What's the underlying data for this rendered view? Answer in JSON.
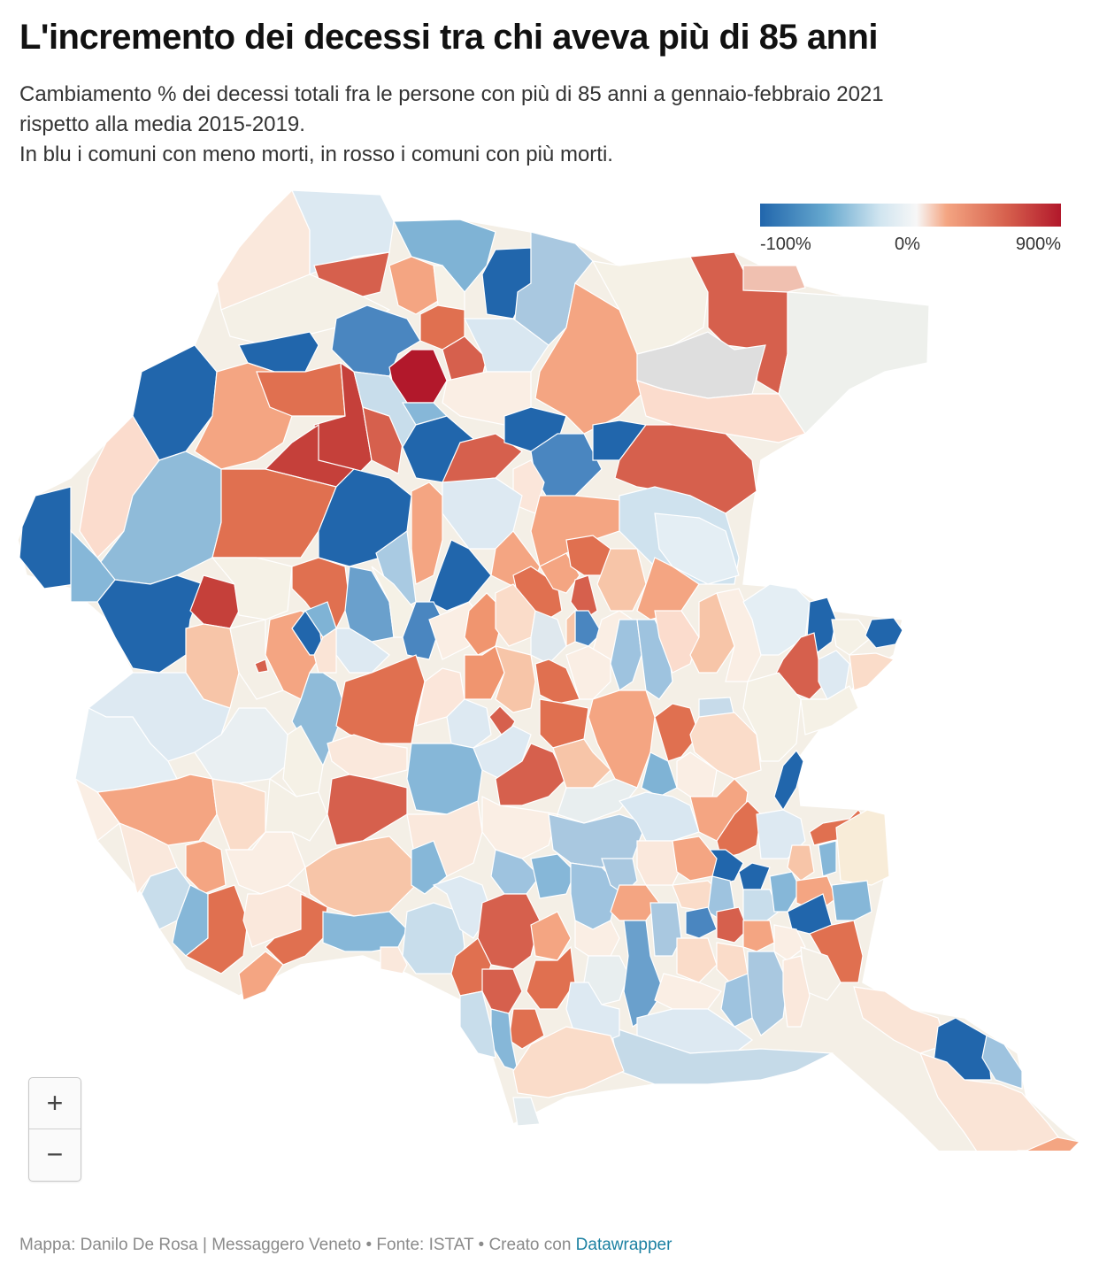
{
  "title": "L'incremento dei decessi tra chi aveva più di 85 anni",
  "subtitle": {
    "line1": "Cambiamento % dei decessi totali fra le persone con più di 85 anni a gennaio-febbraio 2021",
    "line2": "rispetto alla media 2015-2019.",
    "line3": "In blu i comuni con meno morti, in rosso i comuni con più morti."
  },
  "legend": {
    "min_label": "-100%",
    "mid_label": "0%",
    "max_label": "900%",
    "colors": [
      "#2166ac",
      "#67a9cf",
      "#d1e5f0",
      "#f7f7f7",
      "#f4a582",
      "#d6604d",
      "#b2182b"
    ]
  },
  "zoom": {
    "in_label": "+",
    "out_label": "−"
  },
  "footer": {
    "credit": "Mappa: Danilo De Rosa | Messaggero Veneto • Fonte: ISTAT • Creato con ",
    "link": "Datawrapper"
  }
}
